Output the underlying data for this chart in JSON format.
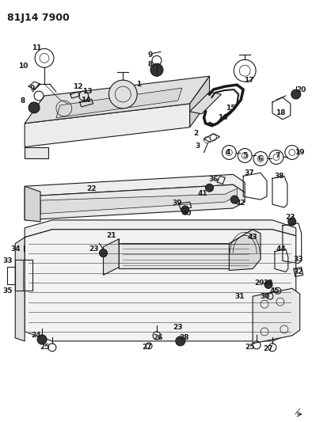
{
  "title": "81J14 7900",
  "bg_color": "#ffffff",
  "line_color": "#1a1a1a",
  "title_fontsize": 9,
  "label_fontsize": 6.5,
  "fig_width": 3.94,
  "fig_height": 5.33,
  "dpi": 100
}
